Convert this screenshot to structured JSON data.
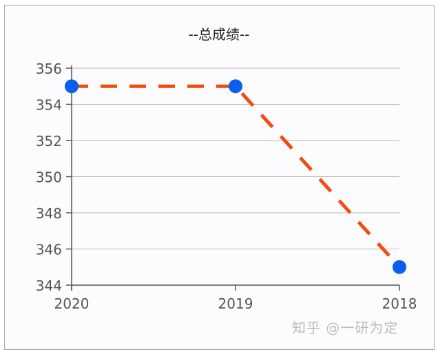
{
  "chart_data": {
    "type": "line",
    "title": "--总成绩--",
    "xlabel": "",
    "ylabel": "",
    "categories": [
      "2020",
      "2019",
      "2018"
    ],
    "series": [
      {
        "name": "总成绩",
        "values": [
          355,
          355,
          345
        ],
        "line_color": "#f04e0c",
        "line_style": "dashed",
        "marker_color": "#0a5ef0"
      }
    ],
    "ylim": [
      344,
      356
    ],
    "yticks": [
      "344",
      "346",
      "348",
      "350",
      "352",
      "354",
      "356"
    ],
    "grid": true,
    "legend": null
  },
  "watermark": "知乎 @一研为定"
}
